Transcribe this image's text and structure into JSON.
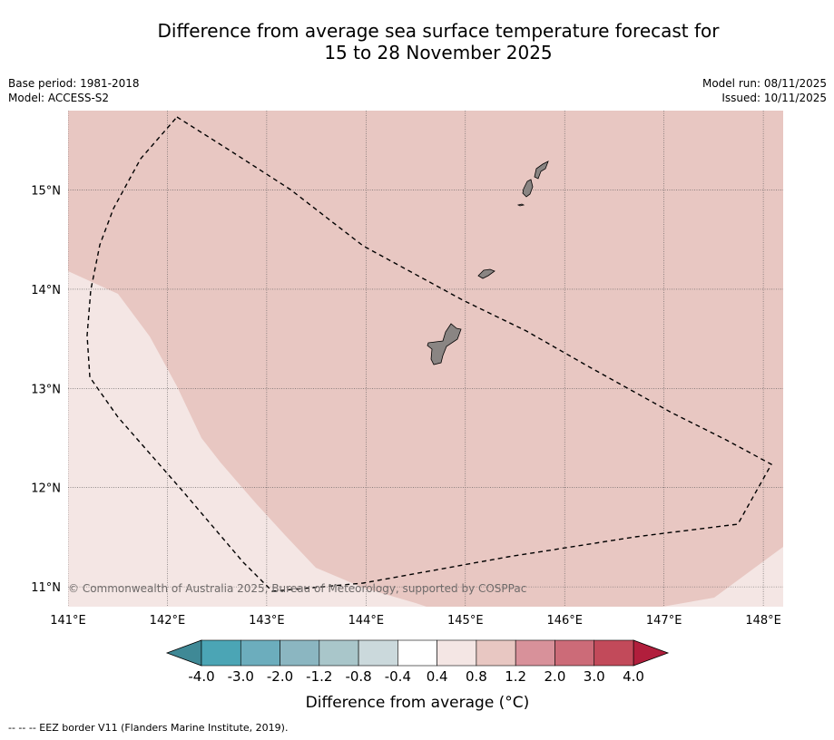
{
  "title": {
    "line1": "Difference from average sea surface temperature forecast for",
    "line2": "15 to 28 November 2025"
  },
  "meta": {
    "base_period": "Base period: 1981-2018",
    "model": "Model: ACCESS-S2",
    "model_run": "Model run: 08/11/2025",
    "issued": "Issued: 10/11/2025"
  },
  "map": {
    "lon_labels": [
      "141°E",
      "142°E",
      "143°E",
      "144°E",
      "145°E",
      "146°E",
      "147°E",
      "148°E"
    ],
    "lat_labels": [
      "15°N",
      "14°N",
      "13°N",
      "12°N",
      "11°N"
    ],
    "copyright": "© Commonwealth of Australia 2025, Bureau of Meteorology, supported by COSPPac",
    "extent": {
      "lon_min": 141,
      "lon_max": 148.2,
      "lat_min": 10.8,
      "lat_max": 15.8
    },
    "regions": [
      {
        "name": "anomaly 0.8 to 1.2 °C",
        "color": "#e8c7c2"
      },
      {
        "name": "anomaly 0.4 to 0.8 °C",
        "color": "#f4e6e4"
      }
    ]
  },
  "colorbar": {
    "tick_labels": [
      "-4.0",
      "-3.0",
      "-2.0",
      "-1.2",
      "-0.8",
      "-0.4",
      "0.4",
      "0.8",
      "1.2",
      "2.0",
      "3.0",
      "4.0"
    ],
    "colors": [
      "#4ba5b5",
      "#6cadbd",
      "#8bb6c1",
      "#a9c6ca",
      "#cbd9dc",
      "#ffffff",
      "#f4e6e4",
      "#e8c7c2",
      "#d8919a",
      "#cc6b78",
      "#c24a5a"
    ],
    "under_color": "#3f8996",
    "over_color": "#b11e3c",
    "label": "Difference from average (°C)"
  },
  "footer": {
    "eez_note": "--  --  -- EEZ border V11 (Flanders Marine Institute, 2019)."
  }
}
